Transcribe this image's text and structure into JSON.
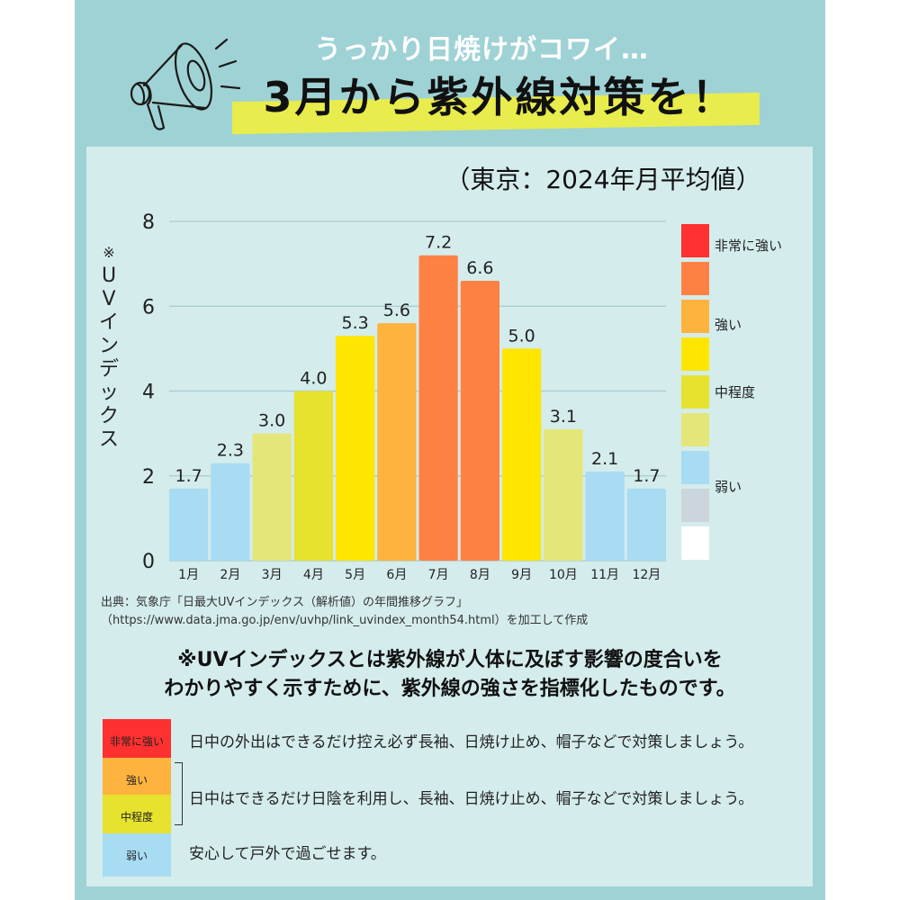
{
  "header": {
    "subtitle": "うっかり日焼けがコワイ…",
    "title": "3月から紫外線対策を！",
    "icon": "megaphone-icon"
  },
  "chart_data": {
    "type": "bar",
    "title": "（東京：2024年月平均値）",
    "ylabel": "※UVインデックス",
    "xlabel": "",
    "ylim": [
      0,
      8
    ],
    "yticks": [
      0,
      2,
      4,
      6,
      8
    ],
    "grid": true,
    "categories": [
      "1月",
      "2月",
      "3月",
      "4月",
      "5月",
      "6月",
      "7月",
      "8月",
      "9月",
      "10月",
      "11月",
      "12月"
    ],
    "values": [
      1.7,
      2.3,
      3.0,
      4.0,
      5.3,
      5.6,
      7.2,
      6.6,
      5.0,
      3.1,
      2.1,
      1.7
    ],
    "value_labels": [
      "1.7",
      "2.3",
      "3.0",
      "4.0",
      "5.3",
      "5.6",
      "7.2",
      "6.6",
      "5.0",
      "3.1",
      "2.1",
      "1.7"
    ],
    "bar_colors": [
      "#a8dcf2",
      "#a8dcf2",
      "#e4e67a",
      "#e6e22e",
      "#fee600",
      "#fdb33e",
      "#fe8144",
      "#fe8144",
      "#fee600",
      "#e4e67a",
      "#a8dcf2",
      "#a8dcf2"
    ],
    "legend": {
      "placement": "right",
      "swatches": [
        "#fe3030",
        "#fe8144",
        "#fdb33e",
        "#fee600",
        "#e6e22e",
        "#e4e67a",
        "#a8dcf2",
        "#cbd5dc",
        "#ffffff"
      ],
      "labels": [
        {
          "text": "非常に強い",
          "at": 0
        },
        {
          "text": "強い",
          "at": 2
        },
        {
          "text": "中程度",
          "at": 4
        },
        {
          "text": "弱い",
          "at": 6
        }
      ]
    }
  },
  "source": {
    "line1": "出典：気象庁「日最大UVインデックス（解析値）の年間推移グラフ」",
    "line2": "（https://www.data.jma.go.jp/env/uvhp/link_uvindex_month54.html）を加工して作成"
  },
  "note": {
    "line1": "※UVインデックスとは紫外線が人体に及ぼす影響の度合いを",
    "line2": "わかりやすく示すために、紫外線の強さを指標化したものです。"
  },
  "categories": [
    {
      "label": "非常に強い",
      "color": "#fe3030",
      "advice": "日中の外出はできるだけ控え必ず長袖、日焼け止め、帽子などで対策しましょう。"
    },
    {
      "label": "強い",
      "color": "#fdb33e"
    },
    {
      "label": "中程度",
      "color": "#e6e22e"
    },
    {
      "label": "弱い",
      "color": "#a8dcf2",
      "advice": "安心して戸外で過ごせます。"
    }
  ],
  "shared_advice": "日中はできるだけ日陰を利用し、長袖、日焼け止め、帽子などで対策しましょう。"
}
